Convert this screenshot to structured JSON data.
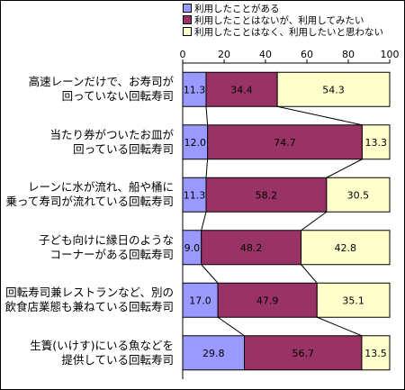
{
  "chart_data": {
    "type": "bar",
    "orientation": "horizontal",
    "stacked": true,
    "xlim": [
      0,
      100
    ],
    "x_ticks": [
      "0",
      "20",
      "40",
      "60",
      "80",
      "100"
    ],
    "categories": [
      [
        "高速レーンだけで、お寿司が",
        "回っていない回転寿司"
      ],
      [
        "当たり券がついたお皿が",
        "回っている回転寿司"
      ],
      [
        "レーンに水が流れ、船や桶に",
        "乗って寿司が流れている回転寿司"
      ],
      [
        "子ども向けに縁日のような",
        "コーナーがある回転寿司"
      ],
      [
        "回転寿司兼レストランなど、別の",
        "飲食店業態も兼ねている回転寿司"
      ],
      [
        "生簀(いけす)にいる魚などを",
        "提供している回転寿司"
      ]
    ],
    "series": [
      {
        "name": "利用したことがある",
        "color": "#9999ff",
        "values": [
          11.3,
          12.0,
          11.3,
          9.0,
          17.0,
          29.8
        ],
        "labels": [
          "11.3",
          "12.0",
          "11.3",
          "9.0",
          "17.0",
          "29.8"
        ]
      },
      {
        "name": "利用したことはないが、利用してみたい",
        "color": "#993366",
        "values": [
          34.4,
          74.7,
          58.2,
          48.2,
          47.9,
          56.7
        ],
        "labels": [
          "34.4",
          "74.7",
          "58.2",
          "48.2",
          "47.9",
          "56.7"
        ]
      },
      {
        "name": "利用したことはなく、利用したいと思わない",
        "color": "#ffffcc",
        "values": [
          54.3,
          13.3,
          30.5,
          42.8,
          35.1,
          13.5
        ],
        "labels": [
          "54.3",
          "13.3",
          "30.5",
          "42.8",
          "35.1",
          "13.5"
        ]
      }
    ],
    "legend_position": "top",
    "series_lines": true,
    "grid": false
  }
}
